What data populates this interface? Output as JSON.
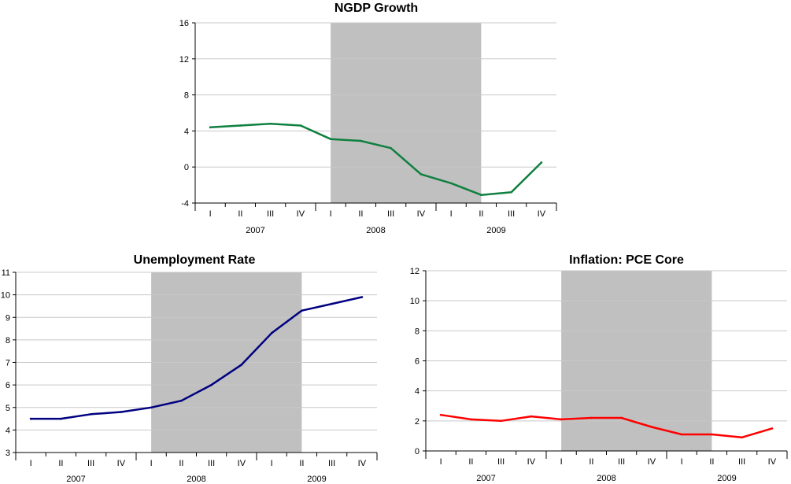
{
  "chart_data": [
    {
      "id": "ngdp",
      "type": "line",
      "title": "NGDP Growth",
      "xlabel": "",
      "ylabel": "",
      "quarters": [
        "I",
        "II",
        "III",
        "IV",
        "I",
        "II",
        "III",
        "IV",
        "I",
        "II",
        "III",
        "IV"
      ],
      "years": [
        "2007",
        "2008",
        "2009"
      ],
      "yticks": [
        "-4",
        "0",
        "4",
        "8",
        "12",
        "16"
      ],
      "ylim": [
        -4,
        16
      ],
      "grid": true,
      "recession": [
        4,
        9
      ],
      "color": "#108040",
      "series": [
        {
          "name": "NGDP Growth",
          "values": [
            4.4,
            4.6,
            4.8,
            4.6,
            3.1,
            2.9,
            2.1,
            -0.8,
            -1.8,
            -3.1,
            -2.8,
            0.5
          ]
        }
      ]
    },
    {
      "id": "unemp",
      "type": "line",
      "title": "Unemployment Rate",
      "xlabel": "",
      "ylabel": "",
      "quarters": [
        "I",
        "II",
        "III",
        "IV",
        "I",
        "II",
        "III",
        "IV",
        "I",
        "II",
        "III",
        "IV"
      ],
      "years": [
        "2007",
        "2008",
        "2009"
      ],
      "yticks": [
        "3",
        "4",
        "5",
        "6",
        "7",
        "8",
        "9",
        "10",
        "11"
      ],
      "ylim": [
        3,
        11
      ],
      "grid": true,
      "recession": [
        4,
        9
      ],
      "color": "#000080",
      "series": [
        {
          "name": "Unemployment Rate",
          "values": [
            4.5,
            4.5,
            4.7,
            4.8,
            5.0,
            5.3,
            6.0,
            6.9,
            8.3,
            9.3,
            9.6,
            9.9
          ]
        }
      ]
    },
    {
      "id": "pce",
      "type": "line",
      "title": "Inflation:  PCE Core",
      "xlabel": "",
      "ylabel": "",
      "quarters": [
        "I",
        "II",
        "III",
        "IV",
        "I",
        "II",
        "III",
        "IV",
        "I",
        "II",
        "III",
        "IV"
      ],
      "years": [
        "2007",
        "2008",
        "2009"
      ],
      "yticks": [
        "0",
        "2",
        "4",
        "6",
        "8",
        "10",
        "12"
      ],
      "ylim": [
        0,
        12
      ],
      "grid": true,
      "recession": [
        4,
        9
      ],
      "color": "#ff0000",
      "series": [
        {
          "name": "Inflation: PCE Core",
          "values": [
            2.4,
            2.1,
            2.0,
            2.3,
            2.1,
            2.2,
            2.2,
            1.6,
            1.1,
            1.1,
            0.9,
            1.5
          ]
        }
      ]
    }
  ]
}
